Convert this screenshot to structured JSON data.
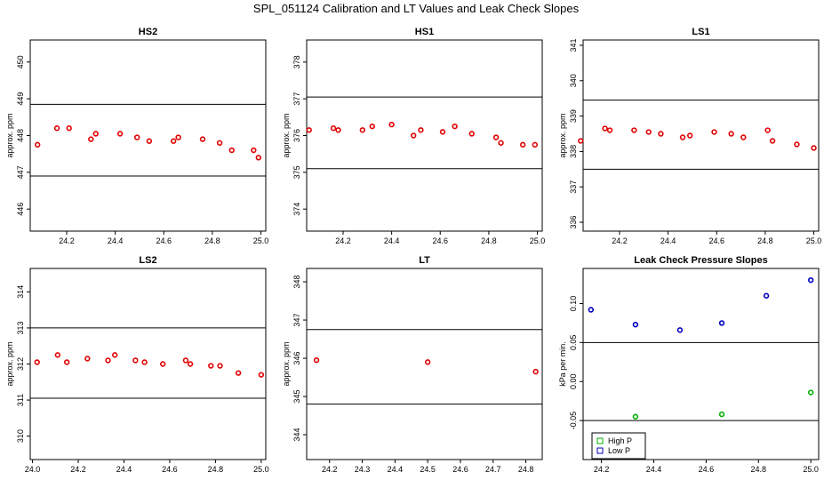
{
  "suptitle": "SPL_051124  Calibration and LT Values and Leak Check Slopes",
  "colors": {
    "red": "#e00000",
    "blue": "#0000c0",
    "green": "#00b000",
    "axis": "#000000"
  },
  "chart_data": [
    {
      "type": "scatter",
      "title": "HS2",
      "xlabel": "",
      "ylabel": "approx. ppm",
      "xlim": [
        24.05,
        25.02
      ],
      "ylim": [
        445.4,
        450.6
      ],
      "xticks": [
        24.2,
        24.4,
        24.6,
        24.8,
        25.0
      ],
      "yticks": [
        446,
        447,
        448,
        449,
        450
      ],
      "hlines": [
        448.85,
        446.9
      ],
      "series": [
        {
          "color": "red",
          "marker": "circle",
          "x": [
            24.08,
            24.16,
            24.21,
            24.3,
            24.32,
            24.42,
            24.49,
            24.54,
            24.64,
            24.66,
            24.76,
            24.83,
            24.88,
            24.97,
            24.99
          ],
          "y": [
            447.75,
            448.2,
            448.2,
            447.9,
            448.05,
            448.05,
            447.95,
            447.85,
            447.85,
            447.95,
            447.9,
            447.8,
            447.6,
            447.6,
            447.4
          ]
        }
      ]
    },
    {
      "type": "scatter",
      "title": "HS1",
      "xlabel": "",
      "ylabel": "approx. ppm",
      "xlim": [
        24.05,
        25.02
      ],
      "ylim": [
        373.4,
        378.6
      ],
      "xticks": [
        24.2,
        24.4,
        24.6,
        24.8,
        25.0
      ],
      "yticks": [
        374,
        375,
        376,
        377,
        378
      ],
      "hlines": [
        377.05,
        375.1
      ],
      "series": [
        {
          "color": "red",
          "marker": "circle",
          "x": [
            24.06,
            24.16,
            24.18,
            24.28,
            24.32,
            24.4,
            24.49,
            24.52,
            24.61,
            24.66,
            24.73,
            24.83,
            24.85,
            24.94,
            24.99
          ],
          "y": [
            376.15,
            376.2,
            376.15,
            376.15,
            376.25,
            376.3,
            376.0,
            376.15,
            376.1,
            376.25,
            376.05,
            375.95,
            375.8,
            375.75,
            375.75
          ]
        }
      ]
    },
    {
      "type": "scatter",
      "title": "LS1",
      "xlabel": "",
      "ylabel": "approx. ppm",
      "xlim": [
        24.05,
        25.02
      ],
      "ylim": [
        335.75,
        341.15
      ],
      "xticks": [
        24.2,
        24.4,
        24.6,
        24.8,
        25.0
      ],
      "yticks": [
        336,
        337,
        338,
        339,
        340,
        341
      ],
      "hlines": [
        339.45,
        337.5
      ],
      "series": [
        {
          "color": "red",
          "marker": "circle",
          "x": [
            24.04,
            24.14,
            24.16,
            24.26,
            24.32,
            24.37,
            24.46,
            24.49,
            24.59,
            24.66,
            24.71,
            24.81,
            24.83,
            24.93,
            25.0
          ],
          "y": [
            338.3,
            338.65,
            338.6,
            338.6,
            338.55,
            338.5,
            338.4,
            338.45,
            338.55,
            338.5,
            338.4,
            338.6,
            338.3,
            338.2,
            338.1
          ]
        }
      ]
    },
    {
      "type": "scatter",
      "title": "LS2",
      "xlabel": "",
      "ylabel": "approx. ppm",
      "xlim": [
        23.99,
        25.02
      ],
      "ylim": [
        309.35,
        314.65
      ],
      "xticks": [
        24.0,
        24.2,
        24.4,
        24.6,
        24.8,
        25.0
      ],
      "yticks": [
        310,
        311,
        312,
        313,
        314
      ],
      "hlines": [
        313.0,
        311.05
      ],
      "series": [
        {
          "color": "red",
          "marker": "circle",
          "x": [
            24.02,
            24.11,
            24.15,
            24.24,
            24.33,
            24.36,
            24.45,
            24.49,
            24.57,
            24.67,
            24.69,
            24.78,
            24.82,
            24.9,
            25.0
          ],
          "y": [
            312.05,
            312.25,
            312.05,
            312.15,
            312.1,
            312.25,
            312.1,
            312.05,
            312.0,
            312.1,
            312.0,
            311.95,
            311.95,
            311.75,
            311.7
          ]
        }
      ]
    },
    {
      "type": "scatter",
      "title": "LT",
      "xlabel": "",
      "ylabel": "approx. ppm",
      "xlim": [
        24.13,
        24.85
      ],
      "ylim": [
        343.35,
        348.35
      ],
      "xticks": [
        24.2,
        24.3,
        24.4,
        24.5,
        24.6,
        24.7,
        24.8
      ],
      "yticks": [
        344,
        345,
        346,
        347,
        348
      ],
      "hlines": [
        346.75,
        344.8
      ],
      "series": [
        {
          "color": "red",
          "marker": "circle",
          "x": [
            24.16,
            24.5,
            24.83
          ],
          "y": [
            345.95,
            345.9,
            345.65
          ]
        }
      ]
    },
    {
      "type": "scatter",
      "title": "Leak Check Pressure Slopes",
      "xlabel": "",
      "ylabel": "kPa per min.",
      "xlim": [
        24.13,
        25.03
      ],
      "ylim": [
        -0.1,
        0.145
      ],
      "xticks": [
        24.2,
        24.4,
        24.6,
        24.8,
        25.0
      ],
      "yticks": [
        -0.05,
        0.0,
        0.05,
        0.1
      ],
      "ytick_labels": [
        "-0.05",
        "0.00",
        "0.05",
        "0.10"
      ],
      "hlines": [
        0.05,
        -0.05
      ],
      "legend": {
        "position": "bottom-left",
        "entries": [
          {
            "label": "High P",
            "color": "green"
          },
          {
            "label": "Low P",
            "color": "blue"
          }
        ]
      },
      "series": [
        {
          "name": "Low P",
          "color": "blue",
          "marker": "circle",
          "x": [
            24.16,
            24.33,
            24.5,
            24.66,
            24.83,
            25.0
          ],
          "y": [
            0.092,
            0.073,
            0.066,
            0.075,
            0.11,
            0.13
          ]
        },
        {
          "name": "High P",
          "color": "green",
          "marker": "circle",
          "x": [
            24.33,
            24.66,
            25.0
          ],
          "y": [
            -0.045,
            -0.042,
            -0.014
          ]
        }
      ]
    }
  ]
}
